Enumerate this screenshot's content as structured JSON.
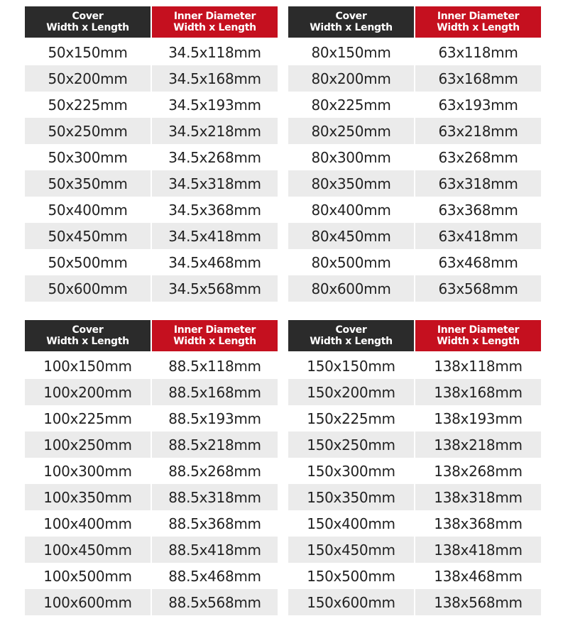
{
  "colors": {
    "header_dark": "#2b2b2b",
    "header_red": "#c5101f",
    "row_alt": "#ebebeb"
  },
  "tables": [
    {
      "headers": [
        [
          "Cover",
          "Width x Length"
        ],
        [
          "Inner Diameter",
          "Width x Length"
        ]
      ],
      "rows": [
        [
          "50x150mm",
          "34.5x118mm"
        ],
        [
          "50x200mm",
          "34.5x168mm"
        ],
        [
          "50x225mm",
          "34.5x193mm"
        ],
        [
          "50x250mm",
          "34.5x218mm"
        ],
        [
          "50x300mm",
          "34.5x268mm"
        ],
        [
          "50x350mm",
          "34.5x318mm"
        ],
        [
          "50x400mm",
          "34.5x368mm"
        ],
        [
          "50x450mm",
          "34.5x418mm"
        ],
        [
          "50x500mm",
          "34.5x468mm"
        ],
        [
          "50x600mm",
          "34.5x568mm"
        ]
      ]
    },
    {
      "headers": [
        [
          "Cover",
          "Width x Length"
        ],
        [
          "Inner Diameter",
          "Width x Length"
        ]
      ],
      "rows": [
        [
          "80x150mm",
          "63x118mm"
        ],
        [
          "80x200mm",
          "63x168mm"
        ],
        [
          "80x225mm",
          "63x193mm"
        ],
        [
          "80x250mm",
          "63x218mm"
        ],
        [
          "80x300mm",
          "63x268mm"
        ],
        [
          "80x350mm",
          "63x318mm"
        ],
        [
          "80x400mm",
          "63x368mm"
        ],
        [
          "80x450mm",
          "63x418mm"
        ],
        [
          "80x500mm",
          "63x468mm"
        ],
        [
          "80x600mm",
          "63x568mm"
        ]
      ]
    },
    {
      "headers": [
        [
          "Cover",
          "Width x Length"
        ],
        [
          "Inner Diameter",
          "Width x Length"
        ]
      ],
      "rows": [
        [
          "100x150mm",
          "88.5x118mm"
        ],
        [
          "100x200mm",
          "88.5x168mm"
        ],
        [
          "100x225mm",
          "88.5x193mm"
        ],
        [
          "100x250mm",
          "88.5x218mm"
        ],
        [
          "100x300mm",
          "88.5x268mm"
        ],
        [
          "100x350mm",
          "88.5x318mm"
        ],
        [
          "100x400mm",
          "88.5x368mm"
        ],
        [
          "100x450mm",
          "88.5x418mm"
        ],
        [
          "100x500mm",
          "88.5x468mm"
        ],
        [
          "100x600mm",
          "88.5x568mm"
        ]
      ]
    },
    {
      "headers": [
        [
          "Cover",
          "Width x Length"
        ],
        [
          "Inner Diameter",
          "Width x Length"
        ]
      ],
      "rows": [
        [
          "150x150mm",
          "138x118mm"
        ],
        [
          "150x200mm",
          "138x168mm"
        ],
        [
          "150x225mm",
          "138x193mm"
        ],
        [
          "150x250mm",
          "138x218mm"
        ],
        [
          "150x300mm",
          "138x268mm"
        ],
        [
          "150x350mm",
          "138x318mm"
        ],
        [
          "150x400mm",
          "138x368mm"
        ],
        [
          "150x450mm",
          "138x418mm"
        ],
        [
          "150x500mm",
          "138x468mm"
        ],
        [
          "150x600mm",
          "138x568mm"
        ]
      ]
    }
  ]
}
